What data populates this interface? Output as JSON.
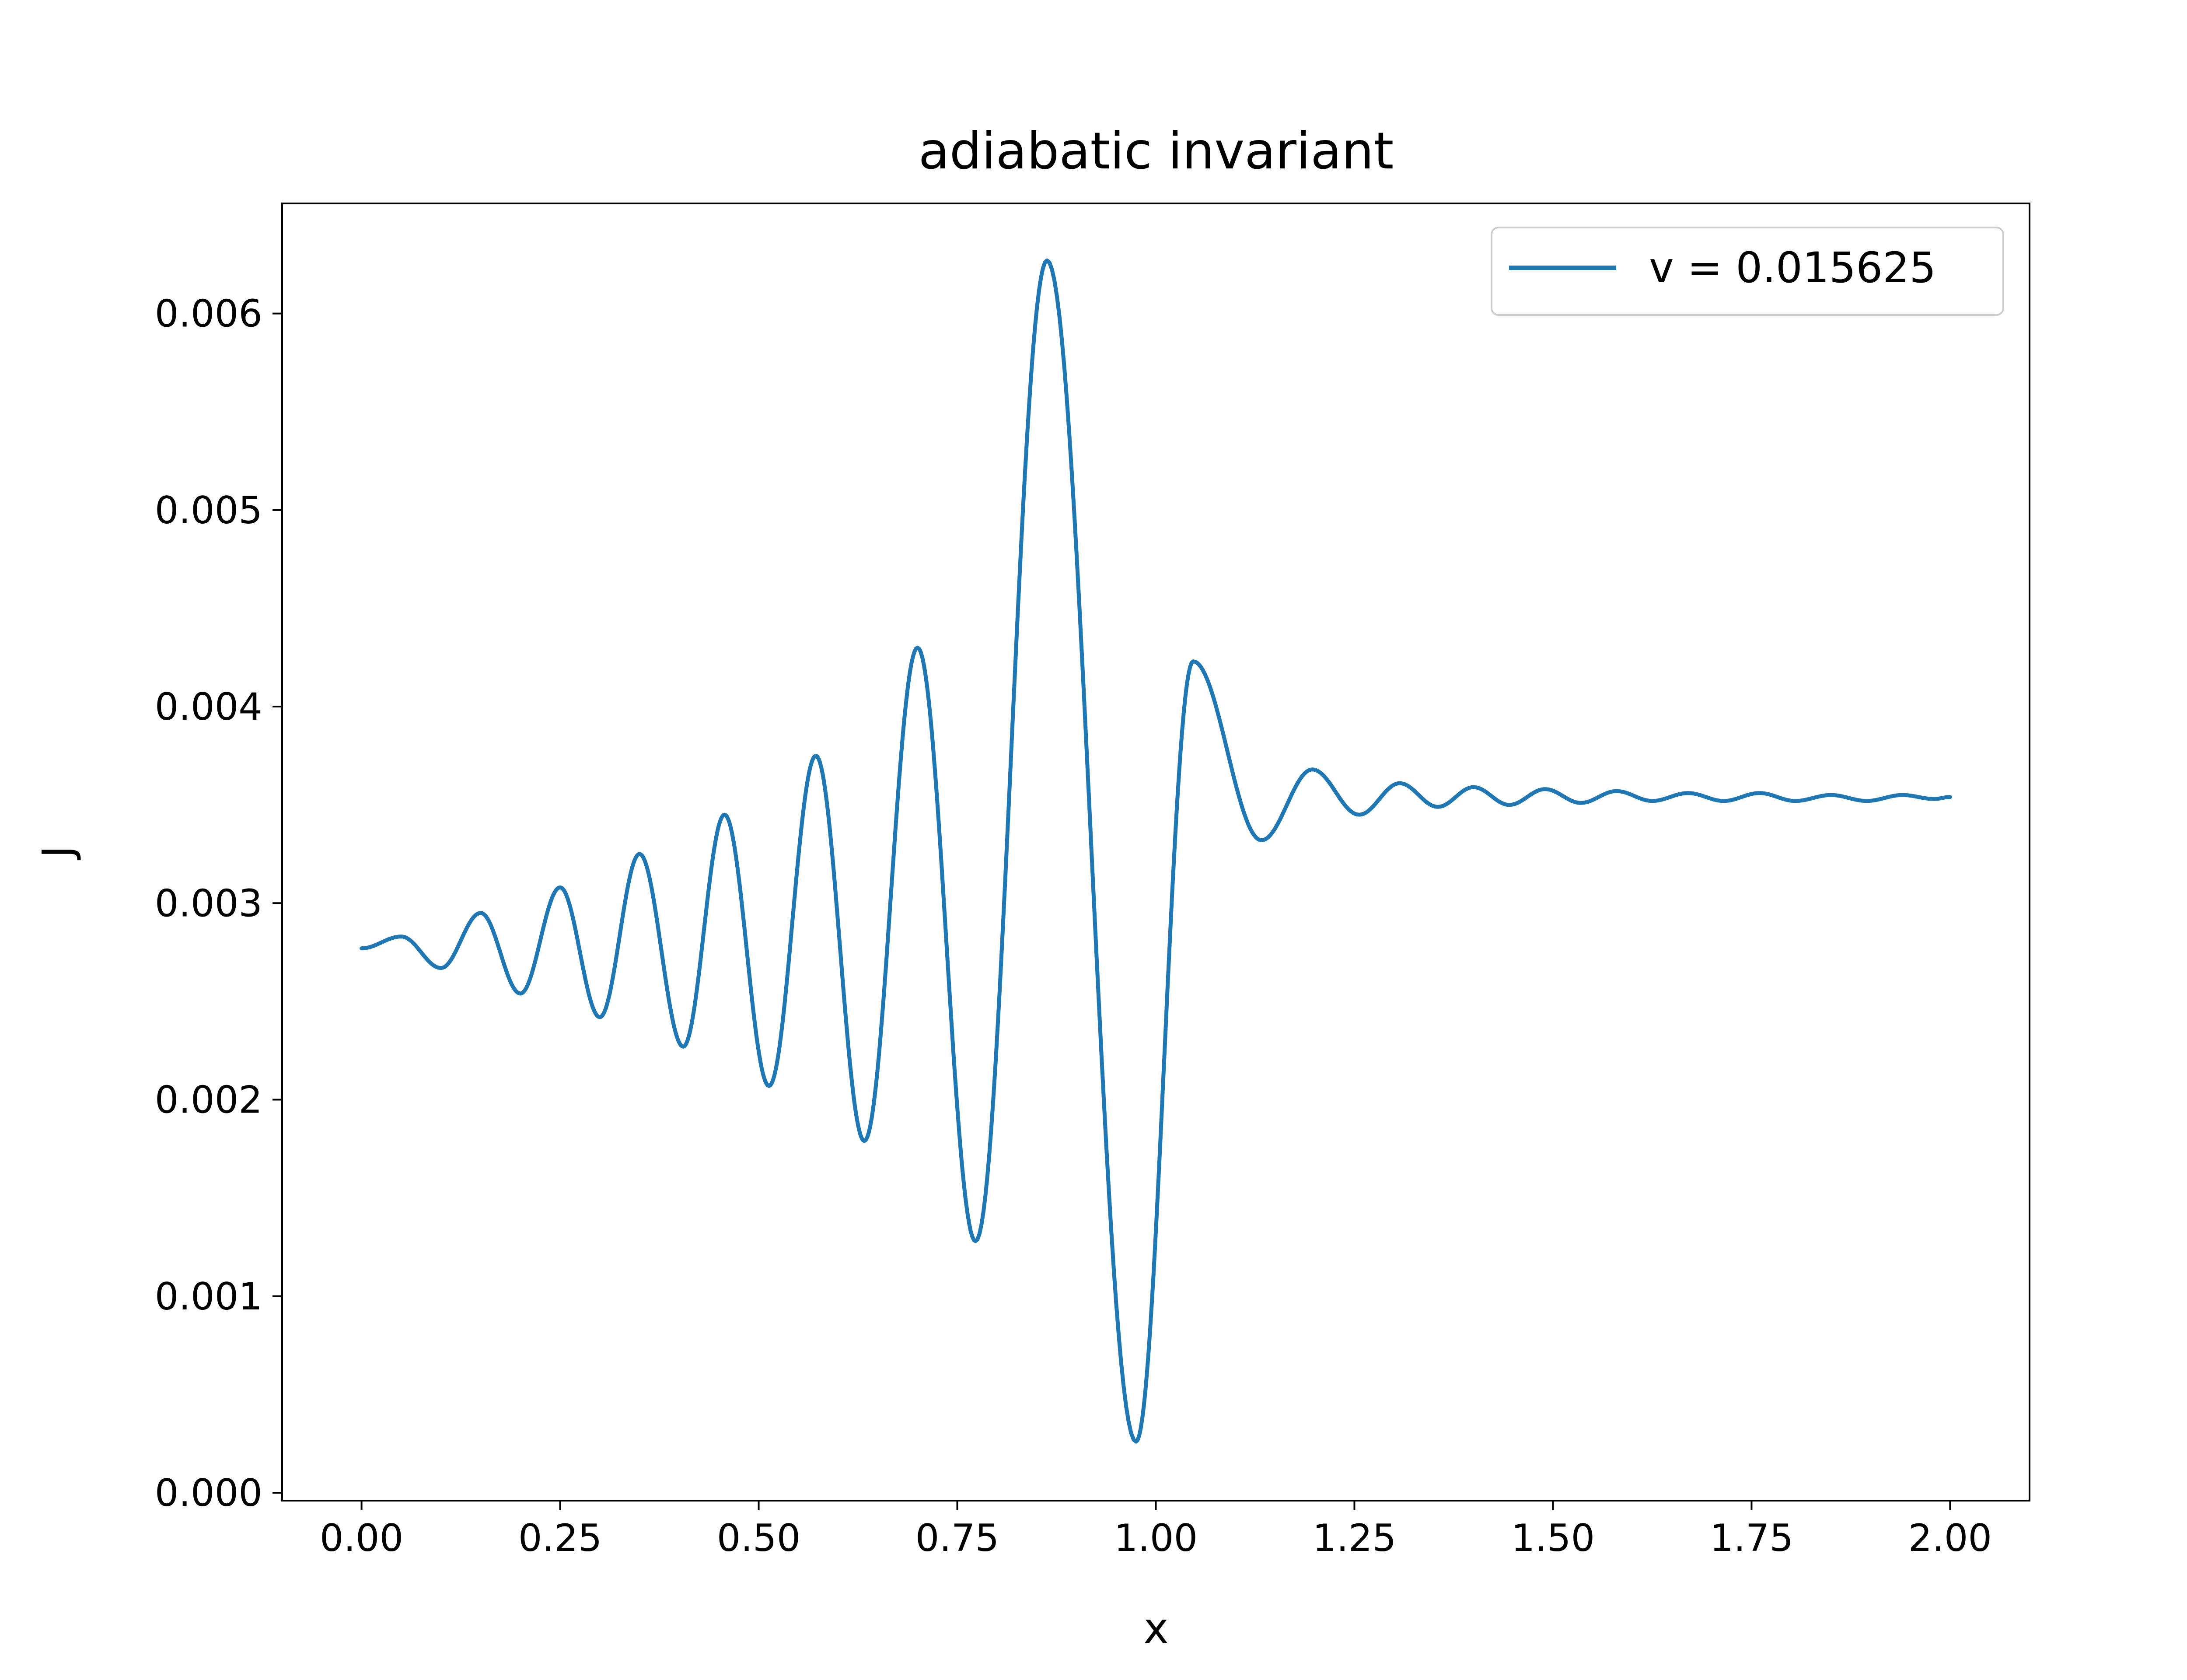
{
  "chart_data": {
    "type": "line",
    "title": "adiabatic invariant",
    "xlabel": "x",
    "ylabel": "J",
    "xlim": [
      -0.1,
      2.1
    ],
    "ylim": [
      -4e-05,
      0.00656
    ],
    "xticks": [
      0.0,
      0.25,
      0.5,
      0.75,
      1.0,
      1.25,
      1.5,
      1.75,
      2.0
    ],
    "xtick_labels": [
      "0.00",
      "0.25",
      "0.50",
      "0.75",
      "1.00",
      "1.25",
      "1.50",
      "1.75",
      "2.00"
    ],
    "yticks": [
      0.0,
      0.001,
      0.002,
      0.003,
      0.004,
      0.005,
      0.006
    ],
    "ytick_labels": [
      "0.000",
      "0.001",
      "0.002",
      "0.003",
      "0.004",
      "0.005",
      "0.006"
    ],
    "grid": false,
    "legend_position": "top-right",
    "colors": {
      "series": "#1f77b4",
      "axes": "#000000",
      "legend_border": "#cccccc"
    },
    "series": [
      {
        "name": "v = 0.015625",
        "extrema_x": [
          0.0,
          0.05,
          0.1,
          0.15,
          0.2,
          0.25,
          0.3,
          0.35,
          0.405,
          0.457,
          0.513,
          0.572,
          0.633,
          0.7,
          0.773,
          0.863,
          0.975,
          1.047,
          1.133,
          1.197,
          1.256,
          1.307,
          1.355,
          1.4,
          1.445,
          1.49,
          1.535,
          1.58,
          1.625,
          1.67,
          1.715,
          1.76,
          1.805,
          1.85,
          1.895,
          1.94,
          1.98,
          2.0
        ],
        "extrema_y": [
          0.00277,
          0.00283,
          0.00267,
          0.00295,
          0.00254,
          0.00308,
          0.00242,
          0.00325,
          0.00227,
          0.00345,
          0.00207,
          0.00375,
          0.00179,
          0.0043,
          0.00128,
          0.00627,
          0.00026,
          0.00423,
          0.00332,
          0.00368,
          0.00345,
          0.00361,
          0.00349,
          0.00359,
          0.0035,
          0.00358,
          0.00351,
          0.00357,
          0.00352,
          0.00356,
          0.00352,
          0.00356,
          0.00352,
          0.00355,
          0.00352,
          0.00355,
          0.00353,
          0.00354
        ]
      }
    ]
  }
}
